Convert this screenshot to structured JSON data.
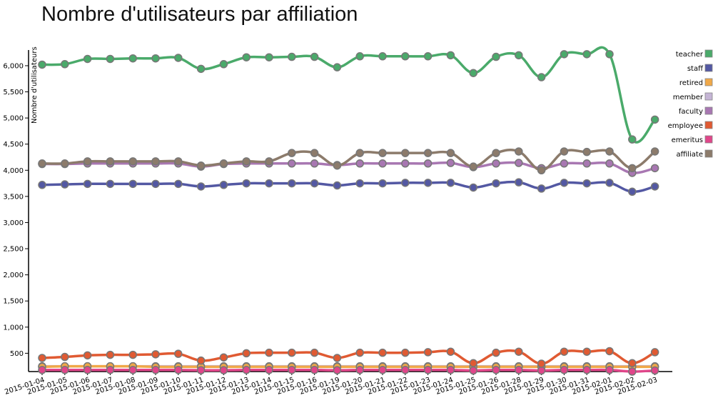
{
  "chart_data": {
    "type": "line",
    "title": "Nombre d'utilisateurs par affiliation",
    "ylabel": "Nombre d'utilisateurs",
    "xlabel": "",
    "ylim": [
      150,
      6300
    ],
    "yticks": [
      500,
      1000,
      1500,
      2000,
      2500,
      3000,
      3500,
      4000,
      4500,
      5000,
      5500,
      6000
    ],
    "ytick_labels": [
      "500",
      "1,000",
      "1,500",
      "2,000",
      "2,500",
      "3,000",
      "3,500",
      "4,000",
      "4,500",
      "5,000",
      "5,500",
      "6,000"
    ],
    "legend_position": "right",
    "x": [
      "2015-01-04",
      "2015-01-05",
      "2015-01-06",
      "2015-01-07",
      "2015-01-08",
      "2015-01-09",
      "2015-01-10",
      "2015-01-11",
      "2015-01-12",
      "2015-01-13",
      "2015-01-14",
      "2015-01-15",
      "2015-01-16",
      "2015-01-19",
      "2015-01-20",
      "2015-01-21",
      "2015-01-22",
      "2015-01-23",
      "2015-01-24",
      "2015-01-25",
      "2015-01-26",
      "2015-01-28",
      "2015-01-29",
      "2015-01-30",
      "2015-01-31",
      "2015-02-01",
      "2015-02-02",
      "2015-02-03"
    ],
    "series": [
      {
        "name": "affiliate",
        "color": "#8c7b6b",
        "values": [
          4130,
          4130,
          4170,
          4170,
          4170,
          4170,
          4170,
          4090,
          4130,
          4170,
          4170,
          4330,
          4330,
          4090,
          4330,
          4330,
          4330,
          4330,
          4330,
          4070,
          4330,
          4360,
          4000,
          4360,
          4350,
          4360,
          4040,
          4360
        ]
      },
      {
        "name": "emeritus",
        "color": "#e0468a",
        "values": [
          180,
          180,
          180,
          180,
          180,
          180,
          180,
          175,
          175,
          180,
          180,
          180,
          180,
          175,
          180,
          180,
          180,
          180,
          180,
          170,
          180,
          180,
          170,
          180,
          180,
          180,
          150,
          170
        ]
      },
      {
        "name": "employee",
        "color": "#e05a32",
        "values": [
          410,
          430,
          460,
          470,
          470,
          480,
          490,
          360,
          420,
          500,
          510,
          510,
          510,
          410,
          510,
          510,
          510,
          520,
          530,
          310,
          510,
          530,
          300,
          530,
          530,
          540,
          310,
          520
        ]
      },
      {
        "name": "faculty",
        "color": "#a877b2",
        "values": [
          4120,
          4120,
          4130,
          4130,
          4130,
          4130,
          4130,
          4070,
          4120,
          4130,
          4130,
          4130,
          4130,
          4100,
          4130,
          4130,
          4130,
          4130,
          4140,
          4060,
          4130,
          4140,
          4040,
          4130,
          4130,
          4130,
          3950,
          4040
        ]
      },
      {
        "name": "member",
        "color": "#c5b5d5",
        "values": [
          250,
          250,
          250,
          250,
          250,
          250,
          250,
          250,
          250,
          250,
          250,
          250,
          250,
          250,
          250,
          250,
          250,
          250,
          250,
          250,
          250,
          250,
          250,
          250,
          250,
          250,
          250,
          250
        ]
      },
      {
        "name": "retired",
        "color": "#f0a848",
        "values": [
          240,
          250,
          250,
          250,
          250,
          240,
          240,
          240,
          240,
          240,
          240,
          240,
          240,
          240,
          240,
          240,
          240,
          240,
          240,
          240,
          240,
          240,
          240,
          240,
          240,
          240,
          240,
          240
        ]
      },
      {
        "name": "staff",
        "color": "#5358a3",
        "values": [
          3720,
          3730,
          3740,
          3740,
          3740,
          3740,
          3740,
          3690,
          3720,
          3750,
          3750,
          3750,
          3750,
          3710,
          3750,
          3750,
          3760,
          3760,
          3760,
          3670,
          3750,
          3770,
          3650,
          3760,
          3750,
          3760,
          3590,
          3690
        ]
      },
      {
        "name": "teacher",
        "color": "#4aaa6a",
        "values": [
          6020,
          6030,
          6130,
          6130,
          6140,
          6140,
          6150,
          5940,
          6030,
          6160,
          6160,
          6170,
          6170,
          5970,
          6180,
          6180,
          6180,
          6180,
          6200,
          5860,
          6170,
          6200,
          5780,
          6220,
          6220,
          6220,
          4590,
          4970
        ]
      }
    ],
    "legend_order": [
      "teacher",
      "staff",
      "retired",
      "member",
      "faculty",
      "employee",
      "emeritus",
      "affiliate"
    ]
  }
}
